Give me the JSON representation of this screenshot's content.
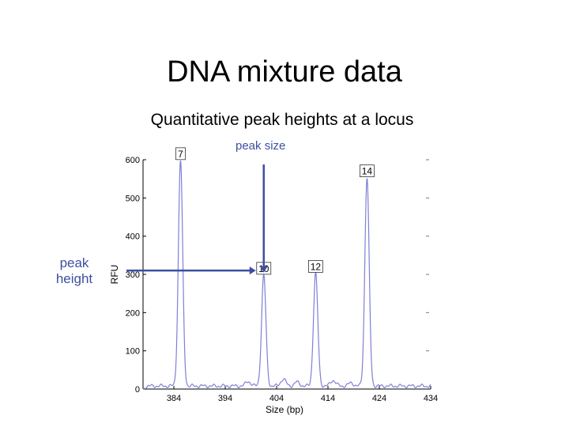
{
  "slide": {
    "title": "DNA mixture data",
    "subtitle": "Quantitative peak heights at a locus",
    "annotation_peak_size": "peak size",
    "annotation_peak_height": "peak\nheight"
  },
  "colors": {
    "trace": "#7f7fd8",
    "annotation": "#3d4fa1",
    "axis": "#000000"
  },
  "chart_data": {
    "type": "line",
    "xlabel": "Size (bp)",
    "ylabel": "RFU",
    "xlim": [
      378,
      434
    ],
    "ylim": [
      0,
      600
    ],
    "x_ticks": [
      384,
      394,
      404,
      414,
      424,
      434
    ],
    "y_ticks": [
      0,
      100,
      200,
      300,
      400,
      500,
      600
    ],
    "grid": false,
    "peaks": [
      {
        "label": "7",
        "x": 385.3,
        "y": 590
      },
      {
        "label": "10",
        "x": 401.5,
        "y": 290
      },
      {
        "label": "12",
        "x": 411.6,
        "y": 295
      },
      {
        "label": "14",
        "x": 421.6,
        "y": 545
      }
    ],
    "minor_peaks": [
      {
        "x": 398.5,
        "y": 12
      },
      {
        "x": 405.3,
        "y": 18
      },
      {
        "x": 408.0,
        "y": 10
      },
      {
        "x": 415.0,
        "y": 15
      },
      {
        "x": 418.5,
        "y": 8
      }
    ],
    "baseline": 8,
    "annotations": {
      "peak_size_at": {
        "x": 401.5,
        "y": 305
      },
      "peak_height_at": {
        "x": 401.5,
        "y": 310
      }
    }
  }
}
